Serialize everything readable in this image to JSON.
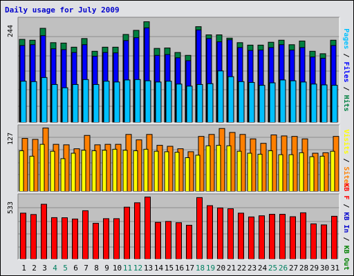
{
  "title": "Daily usage for July 2009",
  "colors": {
    "background": "#dfe0e3",
    "plot": "#c0c0c0",
    "pages": "#00c0ff",
    "files": "#0000ff",
    "hits": "#008040",
    "visits": "#ffff00",
    "sites": "#ff8000",
    "kb_out": "#008000",
    "kb_in": "#0000cc",
    "kb_f": "#ff0000",
    "weekend_label": "#008060"
  },
  "chart_data": [
    {
      "type": "bar",
      "title": "Daily usage for July 2009",
      "categories": [
        "1",
        "2",
        "3",
        "4",
        "5",
        "6",
        "7",
        "8",
        "9",
        "10",
        "11",
        "12",
        "13",
        "14",
        "15",
        "16",
        "17",
        "18",
        "19",
        "20",
        "21",
        "22",
        "23",
        "24",
        "25",
        "26",
        "27",
        "28",
        "29",
        "30",
        "31"
      ],
      "weekend_days": [
        "4",
        "5",
        "11",
        "12",
        "18",
        "19",
        "25",
        "26"
      ],
      "ymax_label": "244",
      "ylim": [
        0,
        244
      ],
      "grid": true,
      "legend": [
        {
          "label": "Pages",
          "color": "#00c0ff"
        },
        {
          "label": "Files",
          "color": "#0000ff"
        },
        {
          "label": "Hits",
          "color": "#008040"
        }
      ],
      "series": [
        {
          "name": "Hits",
          "values": [
            201,
            199,
            228,
            193,
            192,
            182,
            203,
            172,
            182,
            182,
            213,
            223,
            244,
            179,
            180,
            169,
            162,
            232,
            212,
            212,
            204,
            193,
            187,
            187,
            194,
            199,
            188,
            197,
            172,
            166,
            199
          ]
        },
        {
          "name": "Files",
          "values": [
            186,
            188,
            210,
            178,
            176,
            169,
            188,
            160,
            169,
            168,
            198,
            205,
            229,
            162,
            164,
            156,
            149,
            224,
            203,
            195,
            200,
            181,
            174,
            175,
            181,
            188,
            175,
            181,
            158,
            155,
            186
          ]
        },
        {
          "name": "Pages",
          "values": [
            99,
            98,
            108,
            91,
            83,
            91,
            103,
            91,
            99,
            97,
            102,
            103,
            100,
            97,
            99,
            92,
            87,
            91,
            93,
            124,
            110,
            98,
            96,
            89,
            95,
            102,
            100,
            97,
            92,
            90,
            89
          ]
        }
      ]
    },
    {
      "type": "bar",
      "ymax_label": "127",
      "ylim": [
        0,
        127
      ],
      "grid": true,
      "legend": [
        {
          "label": "Visits",
          "color": "#ffff00"
        },
        {
          "label": "Sites",
          "color": "#ff8000"
        }
      ],
      "series": [
        {
          "name": "Sites",
          "values": [
            106,
            104,
            127,
            94,
            93,
            85,
            112,
            93,
            94,
            94,
            114,
            103,
            114,
            92,
            90,
            85,
            79,
            110,
            114,
            126,
            118,
            114,
            105,
            96,
            113,
            111,
            110,
            105,
            76,
            77,
            110
          ]
        },
        {
          "name": "Visits",
          "values": [
            81,
            70,
            94,
            80,
            65,
            76,
            82,
            81,
            82,
            84,
            82,
            81,
            84,
            80,
            79,
            78,
            67,
            72,
            91,
            92,
            91,
            80,
            76,
            74,
            81,
            73,
            73,
            77,
            69,
            70,
            80
          ]
        }
      ]
    },
    {
      "type": "bar",
      "ymax_label": "533",
      "ylim": [
        0,
        533
      ],
      "grid": true,
      "legend": [
        {
          "label": "KB F",
          "color": "#ff0000"
        },
        {
          "label": "KB In",
          "color": "#0000cc"
        },
        {
          "label": "KB Out",
          "color": "#008000"
        }
      ],
      "series": [
        {
          "name": "KB F",
          "values": [
            393,
            381,
            470,
            354,
            353,
            342,
            414,
            305,
            345,
            345,
            445,
            483,
            533,
            313,
            321,
            310,
            288,
            528,
            458,
            438,
            431,
            393,
            360,
            370,
            383,
            383,
            362,
            396,
            300,
            291,
            366
          ]
        }
      ]
    }
  ]
}
